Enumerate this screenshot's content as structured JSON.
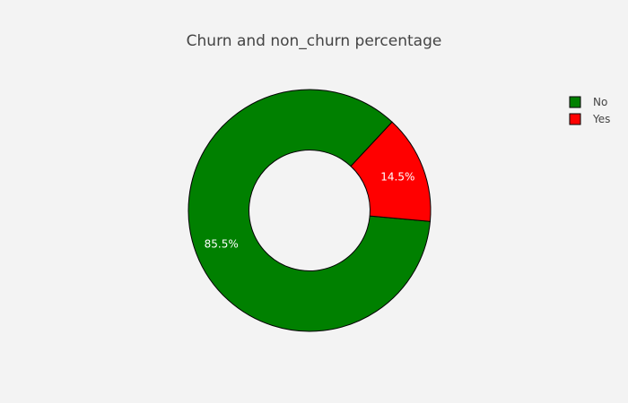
{
  "chart_data": {
    "type": "pie",
    "hole": 0.5,
    "title": "Churn and non_churn percentage",
    "categories": [
      "No",
      "Yes"
    ],
    "values": [
      85.5,
      14.5
    ],
    "labels": [
      "85.5%",
      "14.5%"
    ],
    "colors": [
      "#008000",
      "#ff0000"
    ],
    "slice_outline_color": "#000000",
    "legend": {
      "placement": "top-right",
      "entries": [
        "No",
        "Yes"
      ]
    }
  },
  "background_color": "#f3f3f3"
}
